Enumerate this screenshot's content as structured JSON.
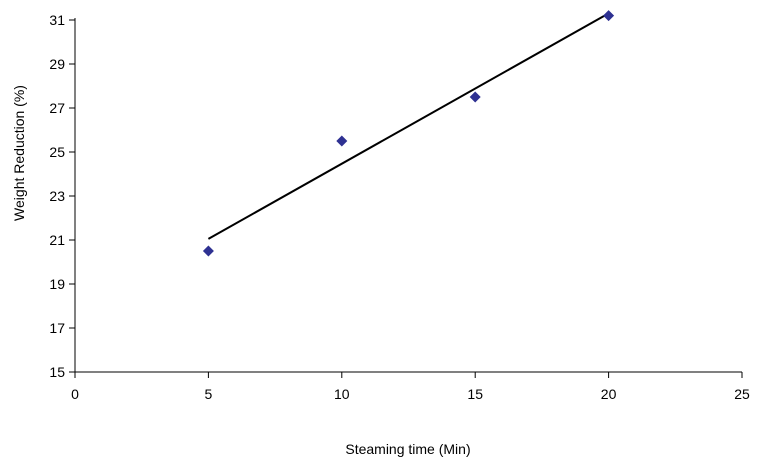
{
  "chart_data": {
    "type": "scatter",
    "xlabel": "Steaming time (Min)",
    "ylabel": "Weight Reduction (%)",
    "xlim": [
      0,
      25
    ],
    "ylim": [
      15,
      31
    ],
    "x_ticks": [
      0,
      5,
      10,
      15,
      20,
      25
    ],
    "y_ticks": [
      15,
      17,
      19,
      21,
      23,
      25,
      27,
      29,
      31
    ],
    "grid": false,
    "legend": "none",
    "series": [
      {
        "x": [
          5,
          10,
          15,
          20
        ],
        "y": [
          20.5,
          25.5,
          27.5,
          31.2
        ],
        "marker": "diamond",
        "color": "#2e3192"
      }
    ],
    "trendline": {
      "type": "linear",
      "x": [
        5,
        20
      ],
      "y": [
        21.05,
        31.3
      ],
      "color": "#000000"
    }
  }
}
